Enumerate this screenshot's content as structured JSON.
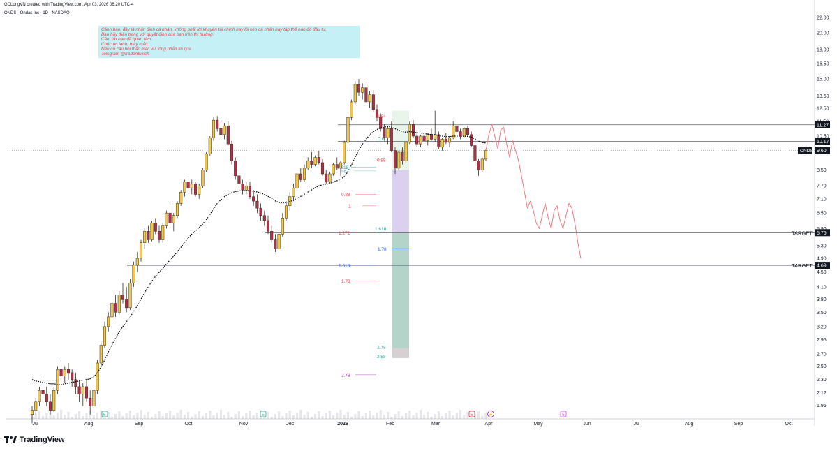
{
  "header": {
    "created_by": "GDLongVN created with TradingView.com, Apr 03, 2026 06:20 UTC-4",
    "symbol_line": "ONDS · Ondas Inc · 1D · NASDAQ"
  },
  "note": {
    "lines": [
      "Cảnh báo: đây là nhận định cá nhân, không phải lời khuyên tài chính hay lôi kéo cá nhân hay tập thể nào đó đầu tư.",
      "Bạn hãy thận trọng với quyết định của bạn trên thị trường.",
      "Cảm ơn bạn đã quan tâm.",
      "Chúc an lành, may mắn.",
      "Nếu có câu hỏi thắc mắc vui lòng nhắn tin qua",
      "Telegram @traderdukich"
    ]
  },
  "brand": {
    "name": "TradingView"
  },
  "colors": {
    "up": "#f0c84a",
    "down": "#b0304a",
    "wick": "#3a2e1e",
    "target_line": "#787b86",
    "fib_red": "#f23645",
    "fib_green": "#26a69a",
    "fib_blue": "#2962ff",
    "projection": "#f07a80",
    "tag_bg": "#131722",
    "ema": "#000000"
  },
  "chart_data": {
    "type": "candlestick",
    "symbol": "ONDS",
    "scale": "log",
    "ylim": [
      1.8,
      23.5
    ],
    "y_ticks": [
      22.0,
      20.0,
      18.0,
      16.5,
      15.0,
      13.5,
      12.5,
      11.5,
      10.5,
      9.5,
      8.5,
      7.7,
      7.1,
      6.5,
      5.9,
      5.3,
      4.9,
      4.5,
      4.1,
      3.8,
      3.5,
      3.2,
      2.95,
      2.7,
      2.5,
      2.3,
      2.12,
      1.96
    ],
    "x_ticks": [
      "Jul",
      "Aug",
      "Sep",
      "Oct",
      "Nov",
      "Dec",
      "2026",
      "Feb",
      "Mar",
      "Apr",
      "May",
      "Jun",
      "Jul",
      "Aug",
      "Sep",
      "Oct"
    ],
    "price_tags": [
      {
        "label": "",
        "value": "11.27"
      },
      {
        "label": "",
        "value": "10.17"
      },
      {
        "label": "ONDS",
        "value": "9.60"
      },
      {
        "label": "TARGET",
        "value": "5.75"
      },
      {
        "label": "TARGET",
        "value": "4.69"
      }
    ],
    "horizontal_levels": [
      11.27,
      10.17,
      5.75,
      4.69
    ],
    "fib_labels": [
      {
        "text": "0.84",
        "y": 11.9,
        "color": "red"
      },
      {
        "text": "0.6",
        "y": 10.35,
        "color": "green"
      },
      {
        "text": "0.88",
        "y": 9.05,
        "color": "red"
      },
      {
        "text": "0.618",
        "y": 8.65,
        "color": "green"
      },
      {
        "text": "0.67",
        "y": 8.45,
        "color": "green"
      },
      {
        "text": "0.88",
        "y": 7.3,
        "color": "red"
      },
      {
        "text": "1",
        "y": 6.8,
        "color": "red"
      },
      {
        "text": "1.618",
        "y": 5.9,
        "color": "green"
      },
      {
        "text": "1.272",
        "y": 5.75,
        "color": "red"
      },
      {
        "text": "1.78",
        "y": 5.2,
        "color": "blue"
      },
      {
        "text": "1.618",
        "y": 4.69,
        "color": "blue"
      },
      {
        "text": "1.78",
        "y": 4.25,
        "color": "red"
      },
      {
        "text": "2.78",
        "y": 2.82,
        "color": "green"
      },
      {
        "text": "2.88",
        "y": 2.66,
        "color": "green"
      },
      {
        "text": "2.78",
        "y": 2.37,
        "color": "purple"
      }
    ],
    "series": [
      {
        "name": "",
        "ohlc": [
          [
            1.85,
            1.95,
            1.75,
            1.9
          ],
          [
            1.9,
            2.05,
            1.85,
            2.0
          ],
          [
            2.0,
            2.2,
            1.95,
            2.15
          ],
          [
            2.15,
            2.35,
            2.05,
            2.1
          ],
          [
            2.1,
            2.2,
            1.95,
            2.0
          ],
          [
            2.0,
            2.1,
            1.85,
            1.9
          ],
          [
            1.9,
            2.2,
            1.88,
            2.15
          ],
          [
            2.15,
            2.5,
            2.1,
            2.45
          ],
          [
            2.45,
            2.6,
            2.3,
            2.35
          ],
          [
            2.35,
            2.5,
            2.25,
            2.45
          ],
          [
            2.45,
            2.55,
            2.3,
            2.4
          ],
          [
            2.4,
            2.45,
            2.2,
            2.3
          ],
          [
            2.3,
            2.4,
            2.1,
            2.2
          ],
          [
            2.2,
            2.3,
            2.0,
            2.1
          ],
          [
            2.1,
            2.25,
            1.95,
            2.2
          ],
          [
            2.2,
            2.3,
            2.0,
            2.05
          ],
          [
            2.05,
            2.15,
            1.85,
            1.95
          ],
          [
            1.95,
            2.2,
            1.9,
            2.15
          ],
          [
            2.15,
            2.6,
            2.1,
            2.55
          ],
          [
            2.55,
            2.9,
            2.5,
            2.85
          ],
          [
            2.85,
            3.3,
            2.8,
            3.2
          ],
          [
            3.2,
            3.5,
            3.1,
            3.4
          ],
          [
            3.4,
            3.8,
            3.3,
            3.7
          ],
          [
            3.7,
            3.9,
            3.4,
            3.5
          ],
          [
            3.5,
            4.0,
            3.45,
            3.9
          ],
          [
            3.9,
            4.2,
            3.7,
            3.8
          ],
          [
            3.8,
            4.1,
            3.5,
            3.6
          ],
          [
            3.6,
            4.3,
            3.55,
            4.2
          ],
          [
            4.2,
            4.8,
            4.1,
            4.7
          ],
          [
            4.7,
            5.1,
            4.5,
            4.9
          ],
          [
            4.9,
            5.5,
            4.8,
            5.4
          ],
          [
            5.4,
            5.9,
            5.2,
            5.8
          ],
          [
            5.8,
            6.0,
            5.4,
            5.5
          ],
          [
            5.5,
            6.2,
            5.45,
            6.1
          ],
          [
            6.1,
            6.3,
            5.7,
            5.8
          ],
          [
            5.8,
            6.0,
            5.4,
            5.5
          ],
          [
            5.5,
            6.1,
            5.4,
            6.0
          ],
          [
            6.0,
            6.6,
            5.9,
            6.5
          ],
          [
            6.5,
            6.8,
            6.0,
            6.1
          ],
          [
            6.1,
            6.5,
            5.8,
            6.4
          ],
          [
            6.4,
            7.0,
            6.3,
            6.9
          ],
          [
            6.9,
            7.5,
            6.8,
            7.4
          ],
          [
            7.4,
            8.0,
            7.2,
            7.9
          ],
          [
            7.9,
            8.2,
            7.5,
            7.6
          ],
          [
            7.6,
            8.0,
            7.3,
            7.8
          ],
          [
            7.8,
            7.9,
            7.2,
            7.3
          ],
          [
            7.3,
            7.8,
            7.1,
            7.7
          ],
          [
            7.7,
            8.6,
            7.6,
            8.5
          ],
          [
            8.5,
            9.5,
            8.4,
            9.4
          ],
          [
            9.4,
            10.5,
            9.3,
            10.4
          ],
          [
            10.4,
            11.8,
            10.2,
            11.6
          ],
          [
            11.6,
            11.9,
            10.8,
            11.0
          ],
          [
            11.0,
            11.6,
            10.5,
            10.6
          ],
          [
            10.6,
            11.4,
            10.3,
            11.2
          ],
          [
            11.2,
            11.5,
            9.9,
            10.0
          ],
          [
            10.0,
            10.2,
            8.8,
            9.0
          ],
          [
            9.0,
            9.2,
            8.0,
            8.2
          ],
          [
            8.2,
            8.4,
            7.6,
            7.8
          ],
          [
            7.8,
            8.0,
            7.3,
            7.5
          ],
          [
            7.5,
            7.9,
            7.3,
            7.7
          ],
          [
            7.7,
            7.9,
            7.1,
            7.2
          ],
          [
            7.2,
            7.5,
            6.8,
            7.0
          ],
          [
            7.0,
            7.3,
            6.5,
            6.7
          ],
          [
            6.7,
            6.9,
            6.2,
            6.4
          ],
          [
            6.4,
            6.6,
            6.0,
            6.2
          ],
          [
            6.2,
            6.4,
            5.7,
            5.8
          ],
          [
            5.8,
            6.0,
            5.4,
            5.5
          ],
          [
            5.5,
            5.7,
            5.1,
            5.2
          ],
          [
            5.2,
            5.8,
            5.0,
            5.7
          ],
          [
            5.7,
            6.5,
            5.6,
            6.3
          ],
          [
            6.3,
            7.0,
            6.2,
            6.8
          ],
          [
            6.8,
            7.4,
            6.6,
            7.2
          ],
          [
            7.2,
            7.8,
            7.0,
            7.6
          ],
          [
            7.6,
            8.4,
            7.5,
            8.3
          ],
          [
            8.3,
            8.6,
            7.9,
            8.0
          ],
          [
            8.0,
            8.8,
            7.9,
            8.6
          ],
          [
            8.6,
            9.2,
            8.5,
            9.0
          ],
          [
            9.0,
            9.5,
            8.6,
            8.8
          ],
          [
            8.8,
            9.3,
            8.7,
            9.2
          ],
          [
            9.2,
            9.6,
            8.8,
            8.9
          ],
          [
            8.9,
            9.1,
            8.2,
            8.3
          ],
          [
            8.3,
            8.5,
            7.8,
            7.9
          ],
          [
            7.9,
            8.4,
            7.8,
            8.3
          ],
          [
            8.3,
            8.9,
            8.2,
            8.8
          ],
          [
            8.8,
            9.2,
            8.5,
            8.6
          ],
          [
            8.6,
            9.0,
            8.2,
            8.9
          ],
          [
            8.9,
            10.2,
            8.8,
            10.1
          ],
          [
            10.1,
            12.0,
            10.0,
            11.8
          ],
          [
            11.8,
            13.2,
            11.6,
            13.0
          ],
          [
            13.0,
            14.8,
            12.8,
            14.5
          ],
          [
            14.5,
            15.0,
            13.5,
            13.8
          ],
          [
            13.8,
            14.6,
            13.2,
            14.2
          ],
          [
            14.2,
            14.8,
            12.8,
            13.0
          ],
          [
            13.0,
            13.9,
            12.5,
            13.6
          ],
          [
            13.6,
            14.0,
            12.2,
            12.4
          ],
          [
            12.4,
            12.8,
            11.5,
            11.8
          ],
          [
            11.8,
            12.1,
            10.8,
            11.0
          ],
          [
            11.0,
            11.3,
            10.2,
            10.4
          ],
          [
            10.4,
            11.2,
            10.0,
            11.0
          ],
          [
            11.0,
            11.5,
            9.5,
            9.6
          ],
          [
            9.6,
            9.8,
            8.3,
            8.6
          ],
          [
            8.6,
            9.6,
            8.5,
            9.5
          ],
          [
            9.5,
            9.8,
            8.8,
            9.0
          ],
          [
            9.0,
            10.2,
            8.9,
            10.1
          ],
          [
            10.1,
            11.5,
            10.0,
            11.3
          ],
          [
            11.3,
            11.6,
            10.4,
            10.5
          ],
          [
            10.5,
            10.9,
            9.8,
            10.0
          ],
          [
            10.0,
            10.6,
            9.8,
            10.5
          ],
          [
            10.5,
            10.9,
            10.0,
            10.2
          ],
          [
            10.2,
            10.7,
            9.9,
            10.6
          ],
          [
            10.6,
            11.0,
            10.2,
            10.3
          ],
          [
            10.3,
            12.3,
            10.1,
            10.6
          ],
          [
            10.6,
            10.8,
            9.7,
            9.8
          ],
          [
            9.8,
            10.4,
            9.6,
            10.3
          ],
          [
            10.3,
            10.7,
            10.0,
            10.1
          ],
          [
            10.1,
            10.5,
            9.8,
            10.4
          ],
          [
            10.4,
            11.5,
            10.3,
            11.2
          ],
          [
            11.2,
            11.4,
            10.6,
            10.8
          ],
          [
            10.8,
            11.0,
            10.3,
            10.5
          ],
          [
            10.5,
            11.1,
            10.4,
            11.0
          ],
          [
            11.0,
            11.2,
            10.5,
            10.6
          ],
          [
            10.6,
            10.8,
            9.8,
            9.9
          ],
          [
            9.9,
            10.1,
            8.9,
            9.0
          ],
          [
            9.0,
            9.1,
            8.2,
            8.5
          ],
          [
            8.5,
            9.2,
            8.4,
            9.1
          ],
          [
            9.1,
            9.7,
            9.0,
            9.6
          ]
        ]
      }
    ],
    "ema": [
      2.3,
      2.28,
      2.27,
      2.26,
      2.25,
      2.24,
      2.24,
      2.23,
      2.23,
      2.24,
      2.25,
      2.26,
      2.27,
      2.28,
      2.29,
      2.3,
      2.31,
      2.34,
      2.4,
      2.49,
      2.6,
      2.73,
      2.86,
      2.98,
      3.1,
      3.2,
      3.3,
      3.4,
      3.52,
      3.65,
      3.8,
      3.96,
      4.1,
      4.25,
      4.38,
      4.49,
      4.6,
      4.73,
      4.85,
      4.97,
      5.1,
      5.25,
      5.41,
      5.56,
      5.7,
      5.81,
      5.93,
      6.07,
      6.24,
      6.44,
      6.68,
      6.9,
      7.06,
      7.2,
      7.3,
      7.38,
      7.43,
      7.46,
      7.47,
      7.48,
      7.47,
      7.45,
      7.41,
      7.36,
      7.3,
      7.21,
      7.12,
      7.01,
      6.94,
      6.92,
      6.94,
      6.98,
      7.04,
      7.13,
      7.21,
      7.31,
      7.41,
      7.51,
      7.61,
      7.7,
      7.75,
      7.77,
      7.82,
      7.89,
      7.95,
      8.02,
      8.16,
      8.42,
      8.77,
      9.22,
      9.62,
      9.98,
      10.3,
      10.58,
      10.8,
      10.95,
      11.05,
      11.1,
      11.15,
      11.1,
      10.99,
      10.9,
      10.8,
      10.76,
      10.8,
      10.77,
      10.72,
      10.7,
      10.65,
      10.64,
      10.6,
      10.6,
      10.52,
      10.5,
      10.47,
      10.47,
      10.5,
      10.5,
      10.48,
      10.49,
      10.48,
      10.43,
      10.32,
      10.18,
      10.09,
      10.06
    ],
    "projection": [
      9.6,
      10.6,
      11.3,
      10.5,
      9.7,
      10.9,
      11.1,
      10.0,
      9.2,
      10.2,
      9.6,
      9.0,
      8.2,
      7.4,
      6.7,
      7.0,
      6.6,
      6.1,
      5.9,
      6.4,
      6.9,
      6.3,
      5.9,
      6.6,
      6.8,
      6.2,
      5.9,
      6.4,
      6.9,
      6.7,
      6.1,
      5.4,
      4.9
    ]
  }
}
